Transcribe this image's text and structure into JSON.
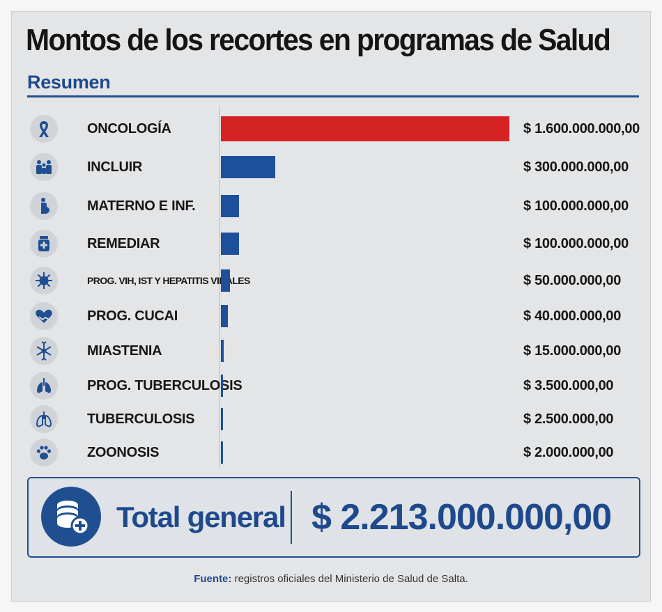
{
  "header": {
    "title": "Montos de los recortes en programas de Salud",
    "subtitle": "Resumen"
  },
  "colors": {
    "accent": "#d52323",
    "bar": "#1e4f9a",
    "brand": "#1f4f91"
  },
  "chart_data": {
    "type": "bar",
    "orientation": "horizontal",
    "categories": [
      "ONCOLOGÍA",
      "INCLUIR",
      "MATERNO E INF.",
      "REMEDIAR",
      "PROG. VIH, IST Y HEPATITIS VIRALES",
      "PROG. CUCAI",
      "MIASTENIA",
      "PROG. TUBERCULOSIS",
      "TUBERCULOSIS",
      "ZOONOSIS"
    ],
    "values": [
      1600000000,
      300000000,
      100000000,
      100000000,
      50000000,
      40000000,
      15000000,
      3500000,
      2500000,
      2000000
    ],
    "value_labels": [
      "$ 1.600.000.000,00",
      "$ 300.000.000,00",
      "$ 100.000.000,00",
      "$ 100.000.000,00",
      "$ 50.000.000,00",
      "$ 40.000.000,00",
      "$ 15.000.000,00",
      "$ 3.500.000,00",
      "$ 2.500.000,00",
      "$ 2.000.000,00"
    ],
    "icons": [
      "ribbon-icon",
      "family-icon",
      "pregnant-icon",
      "medicine-icon",
      "virus-icon",
      "heart-hands-icon",
      "neuron-icon",
      "lungs-icon",
      "lungs-outline-icon",
      "paw-icon"
    ],
    "highlight_index": 0,
    "xlim": [
      0,
      1600000000
    ],
    "grid": false,
    "legend": "none"
  },
  "total": {
    "label": "Total general",
    "value": "$ 2.213.000.000,00",
    "icon": "coins-plus-icon"
  },
  "footer": {
    "source_label": "Fuente:",
    "source_text": "registros oficiales del Ministerio de Salud de Salta."
  }
}
